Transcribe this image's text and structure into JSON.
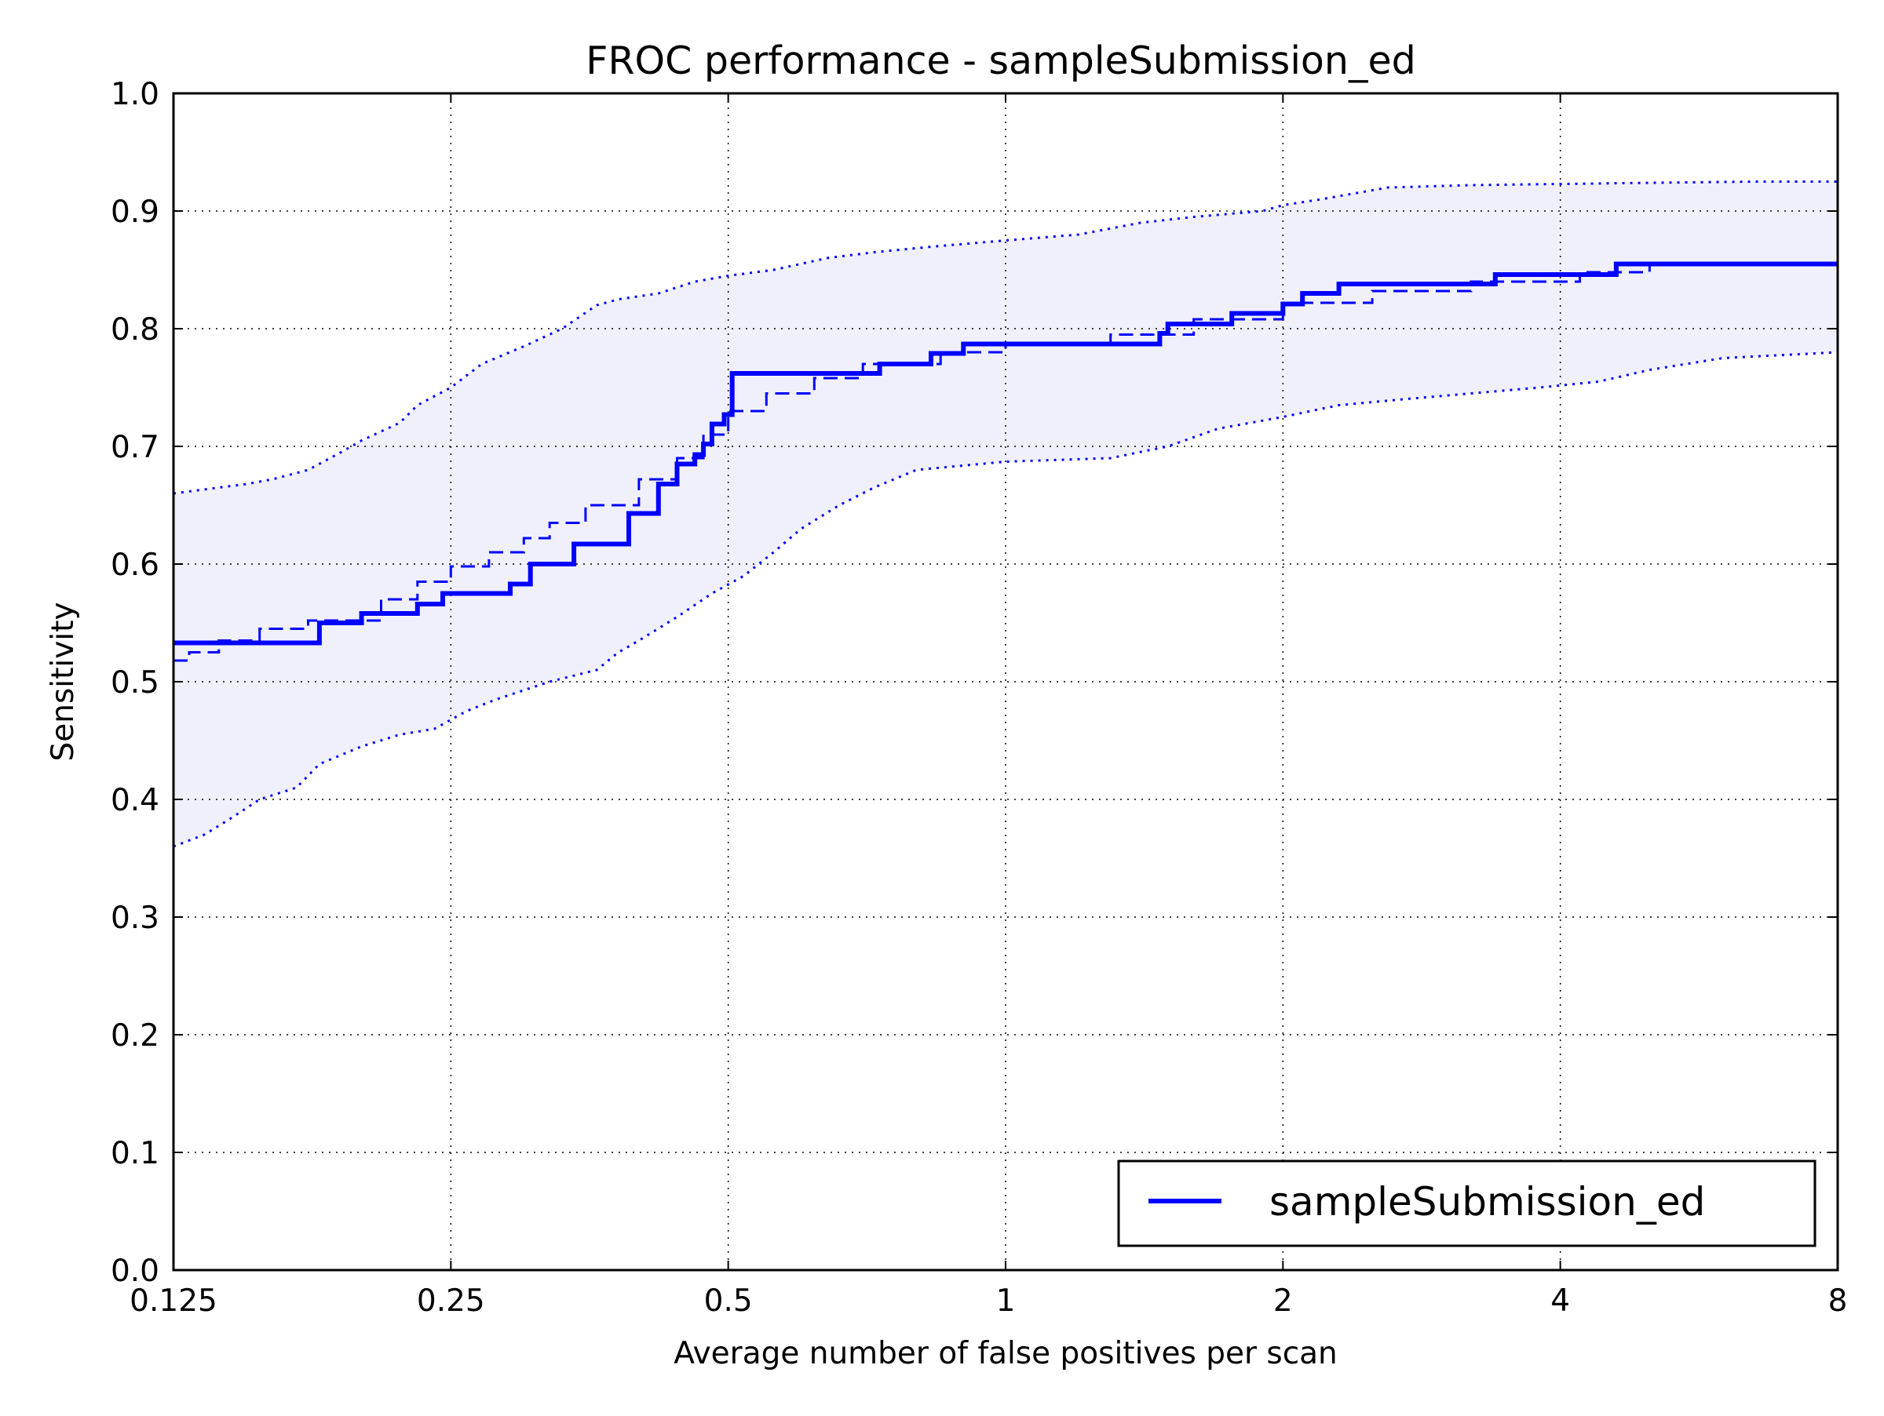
{
  "colors": {
    "series": "#0000ff",
    "band_fill": "#f0f0fc",
    "axes": "#000000",
    "grid": "#000000",
    "background": "#ffffff"
  },
  "chart_data": {
    "type": "line",
    "title": "FROC performance - sampleSubmission_ed",
    "xlabel": "Average number of false positives per scan",
    "ylabel": "Sensitivity",
    "xscale": "log2",
    "xlim": [
      0.125,
      8
    ],
    "ylim": [
      0.0,
      1.0
    ],
    "grid": true,
    "legend_position": "lower-right",
    "xticks": [
      0.125,
      0.25,
      0.5,
      1,
      2,
      4,
      8
    ],
    "xtick_labels": [
      "0.125",
      "0.25",
      "0.5",
      "1",
      "2",
      "4",
      "8"
    ],
    "yticks": [
      0.0,
      0.1,
      0.2,
      0.3,
      0.4,
      0.5,
      0.6,
      0.7,
      0.8,
      0.9,
      1.0
    ],
    "ytick_labels": [
      "0.0",
      "0.1",
      "0.2",
      "0.3",
      "0.4",
      "0.5",
      "0.6",
      "0.7",
      "0.8",
      "0.9",
      "1.0"
    ],
    "series": [
      {
        "name": "sampleSubmission_ed",
        "style": "solid",
        "x": [
          0.125,
          0.18,
          0.18,
          0.2,
          0.2,
          0.23,
          0.23,
          0.245,
          0.245,
          0.29,
          0.29,
          0.305,
          0.305,
          0.34,
          0.34,
          0.345,
          0.345,
          0.39,
          0.39,
          0.42,
          0.42,
          0.42,
          0.42,
          0.44,
          0.44,
          0.46,
          0.46,
          0.47,
          0.47,
          0.48,
          0.48,
          0.495,
          0.495,
          0.505,
          0.505,
          0.73,
          0.73,
          0.83,
          0.83,
          0.9,
          0.9,
          1.47,
          1.47,
          1.5,
          1.5,
          1.76,
          1.76,
          2.0,
          2.0,
          2.1,
          2.1,
          2.3,
          2.3,
          3.4,
          3.4,
          4.6,
          4.6,
          8.0
        ],
        "y": [
          0.533,
          0.533,
          0.55,
          0.55,
          0.558,
          0.558,
          0.566,
          0.566,
          0.575,
          0.575,
          0.583,
          0.583,
          0.6,
          0.6,
          0.617,
          0.617,
          0.617,
          0.617,
          0.643,
          0.643,
          0.668,
          0.668,
          0.668,
          0.668,
          0.685,
          0.685,
          0.693,
          0.693,
          0.702,
          0.702,
          0.719,
          0.719,
          0.727,
          0.727,
          0.762,
          0.762,
          0.77,
          0.77,
          0.779,
          0.779,
          0.787,
          0.787,
          0.796,
          0.796,
          0.804,
          0.804,
          0.813,
          0.813,
          0.821,
          0.821,
          0.83,
          0.83,
          0.838,
          0.838,
          0.846,
          0.846,
          0.855,
          0.855
        ]
      },
      {
        "style": "dashed",
        "x": [
          0.125,
          0.13,
          0.13,
          0.14,
          0.14,
          0.155,
          0.155,
          0.175,
          0.175,
          0.21,
          0.21,
          0.23,
          0.23,
          0.25,
          0.25,
          0.275,
          0.275,
          0.3,
          0.3,
          0.32,
          0.32,
          0.35,
          0.35,
          0.4,
          0.4,
          0.44,
          0.44,
          0.47,
          0.47,
          0.5,
          0.5,
          0.55,
          0.55,
          0.62,
          0.62,
          0.7,
          0.7,
          0.85,
          0.85,
          1.0,
          1.0,
          1.3,
          1.3,
          1.6,
          1.6,
          2.0,
          2.0,
          2.5,
          2.5,
          3.2,
          3.2,
          4.2,
          4.2,
          5.0,
          5.0,
          8.0
        ],
        "y": [
          0.518,
          0.518,
          0.525,
          0.525,
          0.535,
          0.535,
          0.545,
          0.545,
          0.552,
          0.552,
          0.57,
          0.57,
          0.585,
          0.585,
          0.598,
          0.598,
          0.61,
          0.61,
          0.622,
          0.622,
          0.635,
          0.635,
          0.65,
          0.65,
          0.672,
          0.672,
          0.69,
          0.69,
          0.71,
          0.71,
          0.73,
          0.73,
          0.745,
          0.745,
          0.758,
          0.758,
          0.77,
          0.77,
          0.78,
          0.78,
          0.788,
          0.788,
          0.795,
          0.795,
          0.808,
          0.808,
          0.822,
          0.822,
          0.832,
          0.832,
          0.84,
          0.84,
          0.848,
          0.848,
          0.856,
          0.856
        ]
      },
      {
        "style": "dotted-upper",
        "x": [
          0.125,
          0.14,
          0.15,
          0.16,
          0.175,
          0.19,
          0.2,
          0.22,
          0.23,
          0.25,
          0.27,
          0.3,
          0.33,
          0.36,
          0.38,
          0.42,
          0.46,
          0.5,
          0.56,
          0.64,
          0.72,
          0.84,
          1.0,
          1.2,
          1.4,
          1.6,
          1.9,
          2.0,
          2.2,
          2.6,
          3.2,
          4.0,
          5.0,
          6.5,
          8.0
        ],
        "y": [
          0.66,
          0.665,
          0.668,
          0.672,
          0.68,
          0.695,
          0.705,
          0.72,
          0.735,
          0.75,
          0.77,
          0.785,
          0.8,
          0.82,
          0.825,
          0.83,
          0.84,
          0.845,
          0.85,
          0.86,
          0.865,
          0.87,
          0.875,
          0.88,
          0.89,
          0.895,
          0.9,
          0.905,
          0.91,
          0.92,
          0.922,
          0.923,
          0.924,
          0.925,
          0.925
        ]
      },
      {
        "style": "dotted-lower",
        "x": [
          0.125,
          0.135,
          0.145,
          0.155,
          0.17,
          0.18,
          0.2,
          0.22,
          0.24,
          0.26,
          0.28,
          0.32,
          0.36,
          0.38,
          0.4,
          0.44,
          0.48,
          0.52,
          0.56,
          0.6,
          0.66,
          0.72,
          0.8,
          1.0,
          1.3,
          1.5,
          1.7,
          2.0,
          2.3,
          2.7,
          3.2,
          3.8,
          4.4,
          5.0,
          6.0,
          8.0
        ],
        "y": [
          0.36,
          0.37,
          0.385,
          0.4,
          0.41,
          0.43,
          0.445,
          0.455,
          0.46,
          0.475,
          0.485,
          0.5,
          0.51,
          0.525,
          0.535,
          0.555,
          0.575,
          0.59,
          0.61,
          0.63,
          0.65,
          0.665,
          0.68,
          0.687,
          0.69,
          0.7,
          0.715,
          0.725,
          0.735,
          0.74,
          0.745,
          0.75,
          0.755,
          0.765,
          0.775,
          0.78
        ]
      }
    ]
  }
}
